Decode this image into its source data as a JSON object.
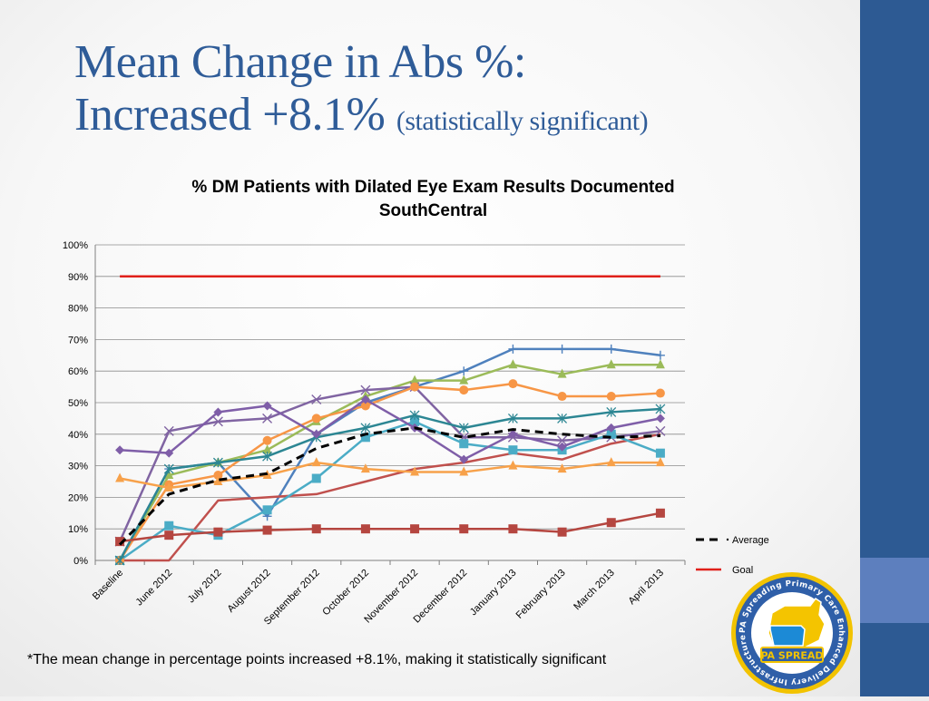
{
  "slide": {
    "title_line1": "Mean Change in Abs %:",
    "title_line2": "Increased +8.1%",
    "title_qualifier": "(statistically significant)",
    "footnote": "*The mean change in percentage points increased +8.1%, making it statistically significant",
    "colors": {
      "title": "#2f5c98",
      "sidebar": "#2d5a93",
      "sidebar_accent": "#5d7fbe"
    }
  },
  "logo": {
    "ring_text": "PA Spreading Primary Care Enhanced Delivery Infrastructure",
    "label": "PA SPREAD",
    "colors": {
      "ring": "#2f5fa8",
      "badge": "#f2c300",
      "map": "#f4c400",
      "state": "#1c8ad6"
    }
  },
  "chart_data": {
    "type": "line",
    "title": "% DM Patients with Dilated Eye Exam Results Documented",
    "subtitle": "SouthCentral",
    "categories": [
      "Baseline",
      "June 2012",
      "July 2012",
      "August 2012",
      "September 2012",
      "October 2012",
      "November 2012",
      "December 2012",
      "January 2013",
      "February 2013",
      "March 2013",
      "April 2013"
    ],
    "ylim": [
      0,
      100
    ],
    "yticks": [
      0,
      10,
      20,
      30,
      40,
      50,
      60,
      70,
      80,
      90,
      100
    ],
    "ytick_labels": [
      "0%",
      "10%",
      "20%",
      "30%",
      "40%",
      "50%",
      "60%",
      "70%",
      "80%",
      "90%",
      "100%"
    ],
    "grid": true,
    "legend_position": "right",
    "series": [
      {
        "color": "#4f81bd",
        "marker": "plus",
        "values": [
          0,
          29,
          31,
          14,
          40,
          50,
          55,
          60,
          67,
          67,
          67,
          65
        ]
      },
      {
        "color": "#c0504d",
        "marker": "none",
        "values": [
          0,
          0,
          19,
          20,
          21,
          25,
          29,
          31,
          34,
          32,
          37,
          40
        ]
      },
      {
        "color": "#9bbb59",
        "marker": "triangle",
        "values": [
          0,
          27,
          31,
          35,
          44,
          52,
          57,
          57,
          62,
          59,
          62,
          62
        ]
      },
      {
        "color": "#8064a2",
        "marker": "x",
        "values": [
          6,
          41,
          44,
          45,
          51,
          54,
          55,
          39,
          39,
          38,
          39,
          41
        ]
      },
      {
        "color": "#4bacc6",
        "marker": "square",
        "values": [
          0,
          11,
          8,
          16,
          26,
          39,
          44,
          37,
          35,
          35,
          40,
          34
        ]
      },
      {
        "color": "#f79646",
        "marker": "circle",
        "values": [
          0,
          24,
          27,
          38,
          45,
          49,
          55,
          54,
          56,
          52,
          52,
          53
        ]
      },
      {
        "color": "#2c8693",
        "marker": "star",
        "values": [
          0,
          29,
          31,
          33,
          39,
          42,
          46,
          42,
          45,
          45,
          47,
          48
        ]
      },
      {
        "color": "#7f5ea8",
        "marker": "diamond",
        "values": [
          35,
          34,
          47,
          49,
          40,
          51,
          42,
          32,
          40,
          36,
          42,
          45
        ]
      },
      {
        "color": "#f7a14a",
        "marker": "triangle",
        "values": [
          26,
          23,
          25,
          27,
          31,
          29,
          28,
          28,
          30,
          29,
          31,
          31
        ]
      },
      {
        "color": "#b54640",
        "marker": "square",
        "values": [
          6,
          8,
          9,
          9.6,
          10,
          10,
          10,
          10,
          10,
          9,
          12,
          15
        ]
      },
      {
        "name": "Average",
        "color": "#000000",
        "dash": true,
        "marker": "none",
        "values": [
          5,
          21,
          25.5,
          27.5,
          35.5,
          40,
          42,
          39,
          41.5,
          40,
          39,
          39.5
        ]
      },
      {
        "name": "Goal",
        "color": "#e0201a",
        "marker": "none",
        "values": [
          90,
          90,
          90,
          90,
          90,
          90,
          90,
          90,
          90,
          90,
          90,
          90
        ]
      }
    ],
    "legend": [
      {
        "label": "Average",
        "color": "#000000",
        "dash": true
      },
      {
        "label": "Goal",
        "color": "#e0201a",
        "dash": false
      }
    ]
  }
}
